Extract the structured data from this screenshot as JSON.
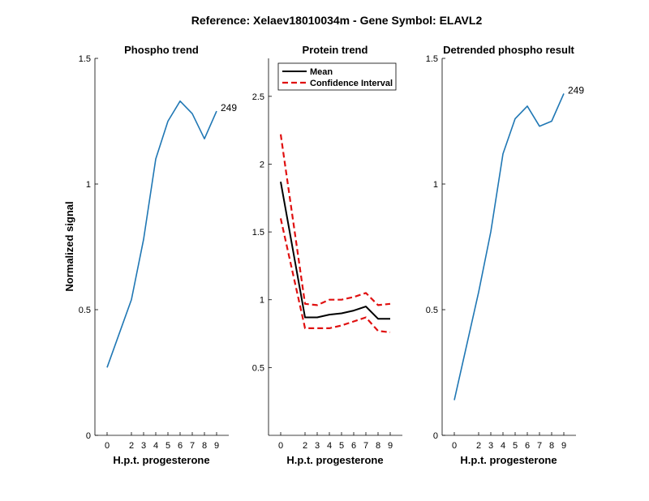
{
  "figure_title": "Reference:  Xelaev18010034m - Gene Symbol:  ELAVL2",
  "colors": {
    "blue": "#1f77b4",
    "red": "#e01010",
    "black": "#000000"
  },
  "chart_data": [
    {
      "type": "line",
      "title": "Phospho trend",
      "xlabel": "H.p.t. progesterone",
      "ylabel": "Normalized signal",
      "x": [
        0,
        2,
        3,
        4,
        5,
        6,
        7,
        8,
        9
      ],
      "ylim": [
        0,
        1.5
      ],
      "yticks": [
        0,
        0.5,
        1,
        1.5
      ],
      "ytick_labels": [
        "0",
        "0.5",
        "1",
        "1.5"
      ],
      "series": [
        {
          "name": "Phospho",
          "color": "#1f77b4",
          "dash": "solid",
          "values": [
            0.27,
            0.54,
            0.78,
            1.1,
            1.25,
            1.33,
            1.28,
            1.18,
            1.29
          ]
        }
      ],
      "annotation": {
        "text": "249"
      }
    },
    {
      "type": "line",
      "title": "Protein trend",
      "xlabel": "H.p.t. progesterone",
      "ylabel": "",
      "x": [
        0,
        2,
        3,
        4,
        5,
        6,
        7,
        8,
        9
      ],
      "ylim": [
        0,
        2.78
      ],
      "yticks": [
        0.5,
        1,
        1.5,
        2,
        2.5
      ],
      "ytick_labels": [
        "0.5",
        "1",
        "1.5",
        "2",
        "2.5"
      ],
      "series": [
        {
          "name": "Mean",
          "color": "#000000",
          "dash": "solid",
          "values": [
            1.87,
            0.87,
            0.87,
            0.89,
            0.9,
            0.92,
            0.95,
            0.86,
            0.86
          ]
        },
        {
          "name": "Confidence Interval",
          "color": "#e01010",
          "dash": "dashed",
          "values": [
            2.22,
            0.97,
            0.96,
            1.0,
            1.0,
            1.02,
            1.05,
            0.96,
            0.97
          ]
        },
        {
          "name": "Confidence Interval",
          "color": "#e01010",
          "dash": "dashed",
          "legend": false,
          "values": [
            1.6,
            0.79,
            0.79,
            0.79,
            0.81,
            0.84,
            0.87,
            0.77,
            0.76
          ]
        }
      ],
      "legend": {
        "position": "top-left",
        "entries": [
          "Mean",
          "Confidence Interval"
        ]
      }
    },
    {
      "type": "line",
      "title": "Detrended phospho result",
      "xlabel": "H.p.t. progesterone",
      "ylabel": "",
      "x": [
        0,
        2,
        3,
        4,
        5,
        6,
        7,
        8,
        9
      ],
      "ylim": [
        0,
        1.5
      ],
      "yticks": [
        0,
        0.5,
        1,
        1.5
      ],
      "ytick_labels": [
        "0",
        "0.5",
        "1",
        "1.5"
      ],
      "series": [
        {
          "name": "Detrended",
          "color": "#1f77b4",
          "dash": "solid",
          "values": [
            0.14,
            0.57,
            0.81,
            1.12,
            1.26,
            1.31,
            1.23,
            1.25,
            1.36
          ]
        }
      ],
      "annotation": {
        "text": "249"
      }
    }
  ]
}
